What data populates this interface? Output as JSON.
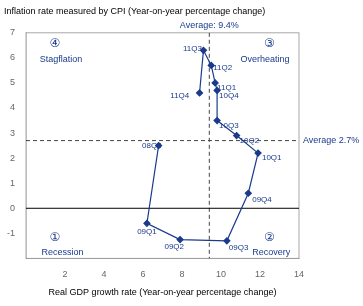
{
  "chart_data": {
    "type": "line",
    "y_label": "Inflation rate measured by CPI (Year-on-year percentage change)",
    "x_label": "Real GDP growth rate (Year-on-year percentage change)",
    "x": [
      6.8,
      6.2,
      7.9,
      10.3,
      11.4,
      11.9,
      10.8,
      9.8,
      9.8,
      9.7,
      9.5,
      9.1,
      8.9
    ],
    "values": [
      2.5,
      -0.6,
      -1.25,
      -1.3,
      0.6,
      2.2,
      2.9,
      3.5,
      4.7,
      5.0,
      5.7,
      6.3,
      4.6
    ],
    "point_labels": [
      "08Q4",
      "09Q1",
      "09Q2",
      "09Q3",
      "09Q4",
      "10Q1",
      "10Q2",
      "10Q3",
      "10Q4",
      "11Q1",
      "11Q2",
      "11Q3",
      "11Q4"
    ],
    "label_dx": [
      -0.85,
      -0.5,
      -0.8,
      0.1,
      0.2,
      0.2,
      0.15,
      0.1,
      0.1,
      0.1,
      0.1,
      -1.05,
      -1.5
    ],
    "label_dy": [
      0.0,
      -0.35,
      -0.28,
      -0.28,
      -0.25,
      -0.2,
      -0.2,
      -0.2,
      -0.2,
      -0.2,
      -0.1,
      0.05,
      -0.1
    ],
    "color": "#1a3a8c",
    "marker": "diamond",
    "xlim": [
      0,
      14
    ],
    "ylim": [
      -2,
      7
    ],
    "xticks": [
      2,
      4,
      6,
      8,
      10,
      12,
      14
    ],
    "yticks": [
      -1,
      0,
      1,
      2,
      3,
      4,
      5,
      6,
      7
    ],
    "grid": false,
    "annotations": [
      {
        "type": "vline",
        "x": 9.4,
        "text": "Average: 9.4%",
        "line_style": "dashed",
        "color": "#444444"
      },
      {
        "type": "hline",
        "y": 2.7,
        "text": "Average 2.7%",
        "line_style": "dashed",
        "color": "#444444"
      },
      {
        "type": "hline",
        "y": 0,
        "line_style": "solid",
        "color": "#000000"
      },
      {
        "type": "text",
        "text": "①",
        "x": 1.2,
        "y": -1.2
      },
      {
        "type": "text",
        "text": "Recession",
        "x": 0.8,
        "y": -1.75
      },
      {
        "type": "text",
        "text": "②",
        "x": 12.2,
        "y": -1.2
      },
      {
        "type": "text",
        "text": "Recovery",
        "x": 11.6,
        "y": -1.75
      },
      {
        "type": "text",
        "text": "③",
        "x": 12.2,
        "y": 6.55
      },
      {
        "type": "text",
        "text": "Overheating",
        "x": 11.0,
        "y": 5.95
      },
      {
        "type": "text",
        "text": "④",
        "x": 1.2,
        "y": 6.55
      },
      {
        "type": "text",
        "text": "Stagflation",
        "x": 0.7,
        "y": 5.95
      }
    ]
  }
}
